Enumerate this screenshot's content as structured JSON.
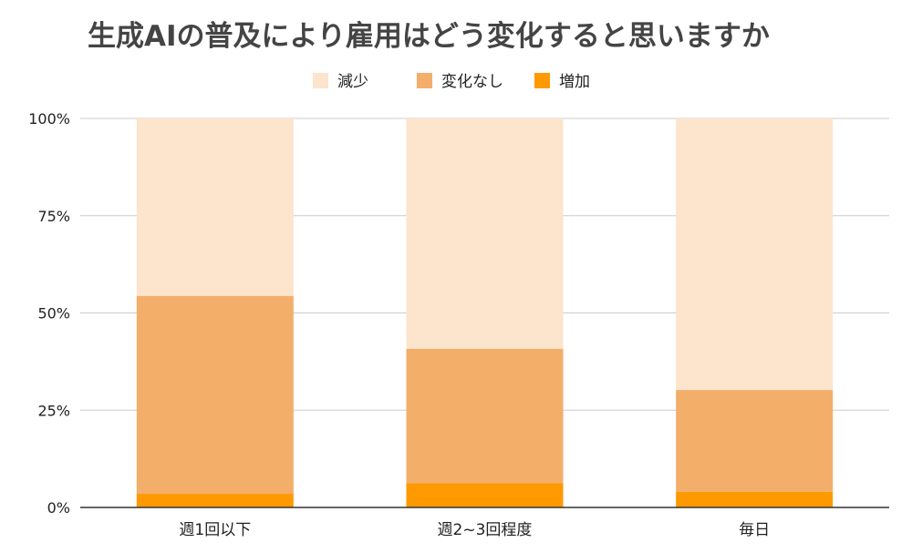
{
  "chart_data": {
    "type": "bar",
    "stacked": true,
    "title": "生成AIの普及により雇用はどう変化すると思いますか",
    "categories": [
      "週1回以下",
      "週2~3回程度",
      "毎日"
    ],
    "series": [
      {
        "name": "増加",
        "color": "#ff9900",
        "values": [
          3.5,
          6.2,
          4.0
        ]
      },
      {
        "name": "変化なし",
        "color": "#f3ae6a",
        "values": [
          50.9,
          34.6,
          26.2
        ]
      },
      {
        "name": "減少",
        "color": "#fce4cd",
        "values": [
          45.6,
          59.2,
          69.8
        ]
      }
    ],
    "legend_order": [
      "減少",
      "変化なし",
      "増加"
    ],
    "legend_position": "top",
    "yticks": [
      "0%",
      "25%",
      "50%",
      "75%",
      "100%"
    ],
    "ylim": [
      0,
      100
    ],
    "grid": true
  }
}
